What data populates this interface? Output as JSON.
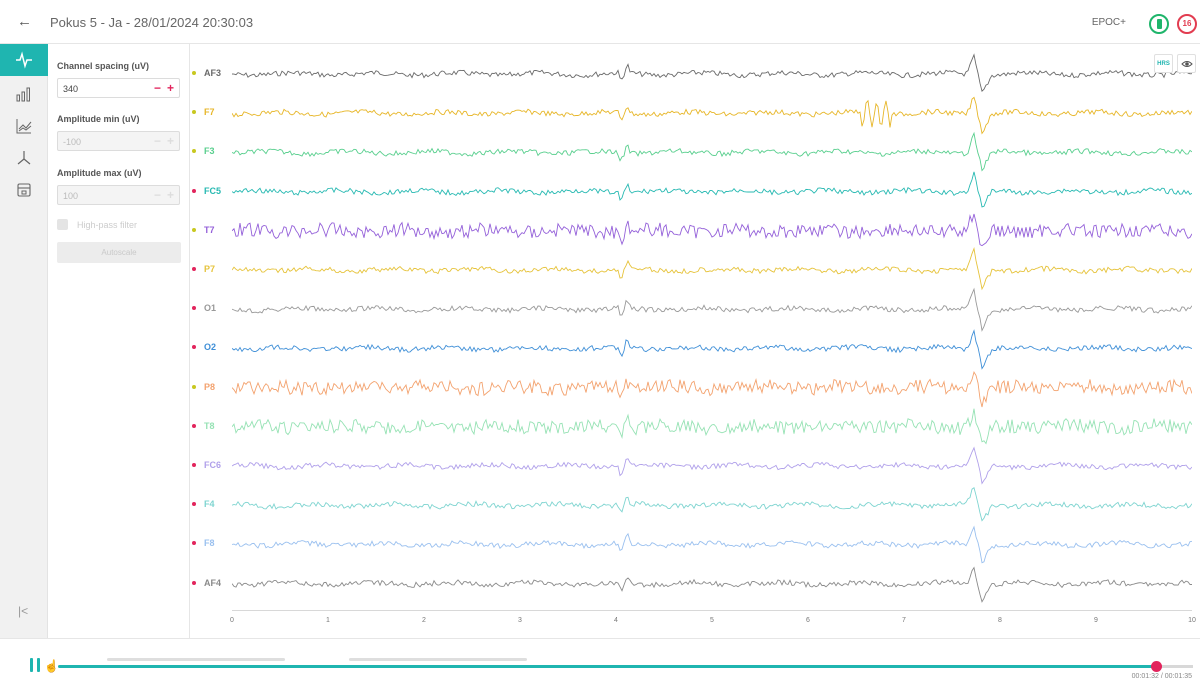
{
  "header": {
    "back_icon": "arrow-left-icon",
    "title": "Pokus 5 - Ja - 28/01/2024 20:30:03",
    "device": "EPOC+",
    "battery_icon": "battery-icon",
    "signal_value": "16",
    "colors": {
      "battery": "#1fb56b",
      "signal": "#e23c50"
    }
  },
  "rail": {
    "items": [
      {
        "icon": "waveform-icon",
        "active": true
      },
      {
        "icon": "bar-chart-icon",
        "active": false
      },
      {
        "icon": "line-chart-icon",
        "active": false
      },
      {
        "icon": "tripod-icon",
        "active": false
      },
      {
        "icon": "window-icon",
        "active": false
      }
    ],
    "collapse_label": "|<"
  },
  "settings": {
    "channel_spacing": {
      "label": "Channel spacing (uV)",
      "value": "340"
    },
    "amplitude_min": {
      "label": "Amplitude min (uV)",
      "value": "-100"
    },
    "amplitude_max": {
      "label": "Amplitude max (uV)",
      "value": "100"
    },
    "high_pass_label": "High-pass filter",
    "autoscale_label": "Autoscale"
  },
  "channels": [
    {
      "name": "AF3",
      "color": "#6a6a6a",
      "dot": "#c8c820"
    },
    {
      "name": "F7",
      "color": "#e7b628",
      "dot": "#c8c820"
    },
    {
      "name": "F3",
      "color": "#59cf8e",
      "dot": "#c8c820"
    },
    {
      "name": "FC5",
      "color": "#27b9b2",
      "dot": "#e2245c"
    },
    {
      "name": "T7",
      "color": "#9460d9",
      "dot": "#c8c820"
    },
    {
      "name": "P7",
      "color": "#e6c33b",
      "dot": "#e2245c"
    },
    {
      "name": "O1",
      "color": "#999999",
      "dot": "#e2245c"
    },
    {
      "name": "O2",
      "color": "#3f8fd7",
      "dot": "#e2245c"
    },
    {
      "name": "P8",
      "color": "#f3a26e",
      "dot": "#c8c820"
    },
    {
      "name": "T8",
      "color": "#96e2b4",
      "dot": "#e2245c"
    },
    {
      "name": "FC6",
      "color": "#b0a0ea",
      "dot": "#e2245c"
    },
    {
      "name": "F4",
      "color": "#7ed4d0",
      "dot": "#e2245c"
    },
    {
      "name": "F8",
      "color": "#9ac0ef",
      "dot": "#e2245c"
    },
    {
      "name": "AF4",
      "color": "#8a8a8a",
      "dot": "#e2245c"
    }
  ],
  "x_axis": {
    "ticks": [
      "0",
      "1",
      "2",
      "3",
      "4",
      "5",
      "6",
      "7",
      "8",
      "9",
      "10"
    ]
  },
  "plot_tools": {
    "hrs_label": "HRS",
    "eye_icon": "eye-icon"
  },
  "playback": {
    "pause_icon": "pause-icon",
    "progress": 0.97,
    "time": "00:01:32 / 00:01:35",
    "accent": "#1fb5b0",
    "knob_color": "#e2245c"
  }
}
